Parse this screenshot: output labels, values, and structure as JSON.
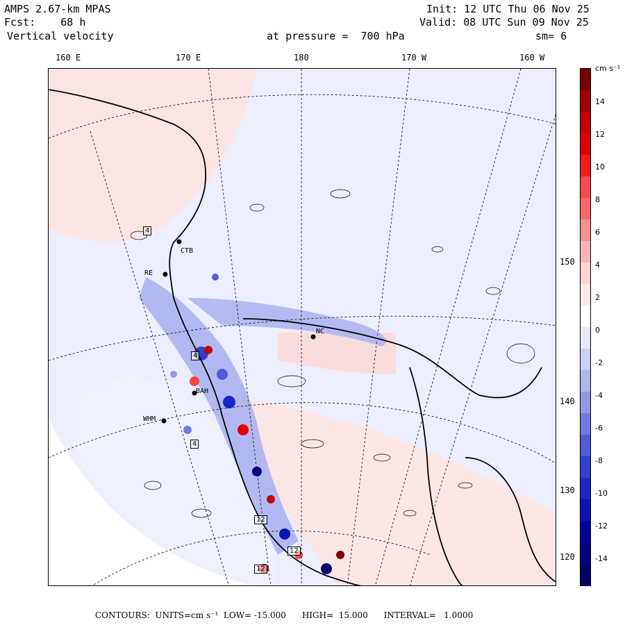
{
  "header": {
    "line1_left": "AMPS 2.67-km MPAS",
    "line2_left": "Fcst:    68 h",
    "line3_left": "Vertical velocity",
    "line1_right": "Init: 12 UTC Thu 06 Nov 25",
    "line2_right": "Valid: 08 UTC Sun 09 Nov 25",
    "pressure": "at pressure =  700 hPa",
    "smooth": "sm= 6"
  },
  "lon_labels": [
    "160 E",
    "170 E",
    "180",
    "170 W",
    "160 W"
  ],
  "lat_labels": [
    "150 W",
    "140 W",
    "130 W",
    "120 W"
  ],
  "colorbar": {
    "unit": "cm s⁻¹",
    "ticks": [
      "14",
      "12",
      "10",
      "8",
      "6",
      "4",
      "2",
      "0",
      "-2",
      "-4",
      "-6",
      "-8",
      "-10",
      "-12",
      "-14"
    ],
    "colors": [
      "#7a0000",
      "#9e0000",
      "#c40000",
      "#e00000",
      "#f41a1a",
      "#f84848",
      "#f86a6a",
      "#f89090",
      "#f8b4b4",
      "#fcd4d4",
      "#fdeaea",
      "#ffffff",
      "#e6e8fb",
      "#ccd0f6",
      "#b0b6f0",
      "#9098e8",
      "#707ae0",
      "#505cd8",
      "#3040d0",
      "#1a28c8",
      "#0a14b8",
      "#00009c",
      "#000082",
      "#000068"
    ]
  },
  "stations": [
    {
      "name": "CTB"
    },
    {
      "name": "RE"
    },
    {
      "name": "BAH"
    },
    {
      "name": "WHM"
    },
    {
      "name": "NC"
    }
  ],
  "map_boxes": [
    "4",
    "4",
    "4",
    "12",
    "12",
    "12"
  ],
  "footer": "CONTOURS:  UNITS=cm s⁻¹  LOW= -15.000      HIGH=  15.000      INTERVAL=   1.0000"
}
